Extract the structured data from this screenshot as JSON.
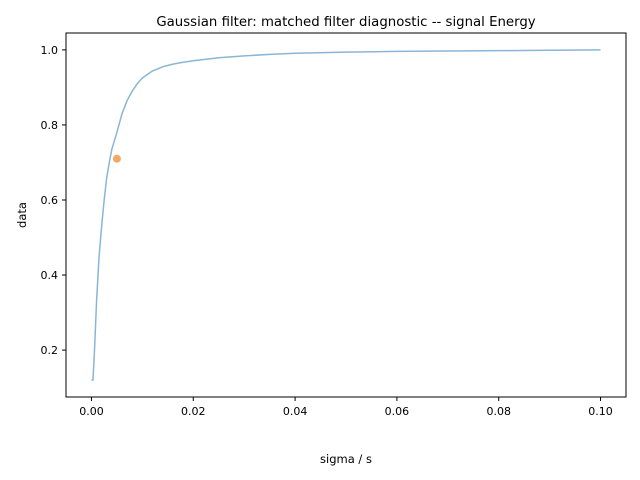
{
  "chart_data": {
    "type": "line",
    "title": "Gaussian filter: matched filter diagnostic -- signal Energy",
    "xlabel": "sigma / s",
    "ylabel": "data",
    "xlim": [
      -0.005,
      0.105
    ],
    "ylim": [
      0.075,
      1.045
    ],
    "x_ticks": [
      0.0,
      0.02,
      0.04,
      0.06,
      0.08,
      0.1
    ],
    "x_tick_labels": [
      "0.00",
      "0.02",
      "0.04",
      "0.06",
      "0.08",
      "0.10"
    ],
    "y_ticks": [
      0.2,
      0.4,
      0.6,
      0.8,
      1.0
    ],
    "y_tick_labels": [
      "0.2",
      "0.4",
      "0.6",
      "0.8",
      "1.0"
    ],
    "grid": false,
    "series": [
      {
        "type": "line",
        "color": "#8ab6d6",
        "x": [
          0.0,
          0.0003,
          0.0006,
          0.001,
          0.0015,
          0.002,
          0.0025,
          0.003,
          0.0035,
          0.004,
          0.005,
          0.006,
          0.007,
          0.008,
          0.009,
          0.01,
          0.012,
          0.014,
          0.016,
          0.018,
          0.02,
          0.025,
          0.03,
          0.035,
          0.04,
          0.05,
          0.06,
          0.07,
          0.08,
          0.09,
          0.1
        ],
        "y": [
          0.12,
          0.12,
          0.2,
          0.33,
          0.45,
          0.53,
          0.6,
          0.66,
          0.7,
          0.735,
          0.78,
          0.83,
          0.865,
          0.89,
          0.91,
          0.925,
          0.944,
          0.955,
          0.962,
          0.967,
          0.971,
          0.979,
          0.984,
          0.988,
          0.991,
          0.994,
          0.996,
          0.997,
          0.998,
          0.999,
          1.0
        ]
      },
      {
        "type": "scatter",
        "color": "#f5a862",
        "x": [
          0.005
        ],
        "y": [
          0.71
        ]
      }
    ]
  }
}
